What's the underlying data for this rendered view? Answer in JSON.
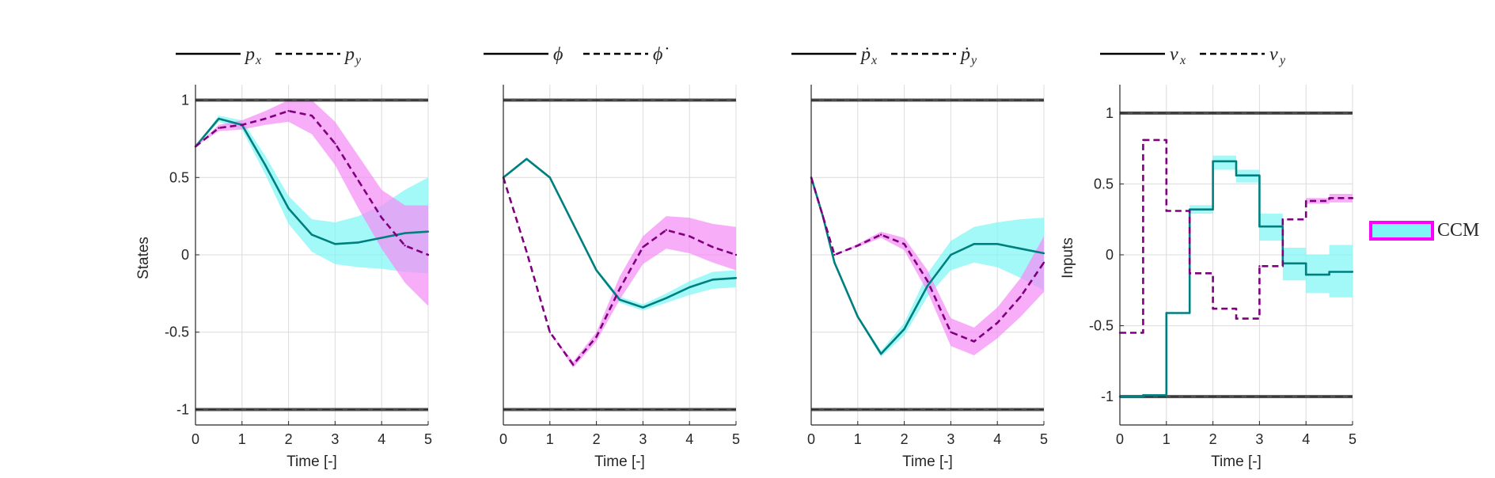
{
  "colors": {
    "band_primary": "#7ff5f5",
    "band_secondary": "#f58ef5",
    "line_primary": "#007f7f",
    "line_secondary": "#7f007f",
    "constraint": "#333333",
    "grid": "#dcdcdc",
    "axis": "#262626",
    "legend_patch_fill": "#7ff5f5",
    "legend_patch_edge": "#ff00ff"
  },
  "legend": {
    "label": "CCM"
  },
  "chart_data": [
    {
      "type": "line",
      "legend_labels": [
        "p",
        "x",
        "p",
        "y"
      ],
      "ylabel": "States",
      "xlabel": "Time [-]",
      "xlim": [
        0,
        5
      ],
      "ylim": [
        -1.1,
        1.1
      ],
      "xticks": [
        "0",
        "1",
        "2",
        "3",
        "4",
        "5"
      ],
      "yticks": [
        "1",
        "0.5",
        "0",
        "-0.5",
        "-1"
      ],
      "constraints": [
        1,
        -1
      ],
      "step": false,
      "x": [
        0,
        0.5,
        1,
        1.5,
        2,
        2.5,
        3,
        3.5,
        4,
        4.5,
        5
      ],
      "series": [
        {
          "name": "p_x",
          "values": [
            0.7,
            0.88,
            0.84,
            0.58,
            0.3,
            0.13,
            0.07,
            0.08,
            0.11,
            0.14,
            0.15
          ],
          "band_lower": [
            0.7,
            0.86,
            0.81,
            0.52,
            0.2,
            0.02,
            -0.06,
            -0.08,
            -0.09,
            -0.11,
            -0.12
          ],
          "band_upper": [
            0.7,
            0.9,
            0.87,
            0.64,
            0.38,
            0.23,
            0.21,
            0.25,
            0.32,
            0.42,
            0.5
          ]
        },
        {
          "name": "p_y",
          "values": [
            0.7,
            0.82,
            0.84,
            0.88,
            0.93,
            0.9,
            0.72,
            0.48,
            0.24,
            0.06,
            0
          ],
          "band_lower": [
            0.7,
            0.8,
            0.81,
            0.84,
            0.86,
            0.78,
            0.58,
            0.3,
            0.04,
            -0.18,
            -0.33
          ],
          "band_upper": [
            0.7,
            0.84,
            0.87,
            0.93,
            1.0,
            1.0,
            0.86,
            0.64,
            0.42,
            0.32,
            0.32
          ]
        }
      ]
    },
    {
      "type": "line",
      "legend_labels": [
        "ϕ",
        "",
        "ϕ̇",
        ""
      ],
      "ylabel": "",
      "xlabel": "Time [-]",
      "xlim": [
        0,
        5
      ],
      "ylim": [
        -1.1,
        1.1
      ],
      "xticks": [
        "0",
        "1",
        "2",
        "3",
        "4",
        "5"
      ],
      "yticks": [],
      "constraints": [
        1,
        -1
      ],
      "step": false,
      "x": [
        0,
        0.5,
        1,
        1.5,
        2,
        2.5,
        3,
        3.5,
        4,
        4.5,
        5
      ],
      "series": [
        {
          "name": "ϕ",
          "values": [
            0.5,
            0.62,
            0.5,
            0.2,
            -0.1,
            -0.29,
            -0.34,
            -0.28,
            -0.21,
            -0.16,
            -0.15
          ],
          "band_lower": [
            0.5,
            0.62,
            0.5,
            0.2,
            -0.11,
            -0.31,
            -0.36,
            -0.31,
            -0.26,
            -0.22,
            -0.21
          ],
          "band_upper": [
            0.5,
            0.62,
            0.5,
            0.2,
            -0.09,
            -0.27,
            -0.32,
            -0.25,
            -0.17,
            -0.11,
            -0.1
          ]
        },
        {
          "name": "ϕ̇",
          "values": [
            0.5,
            0.02,
            -0.5,
            -0.71,
            -0.53,
            -0.22,
            0.05,
            0.16,
            0.12,
            0.05,
            0.0
          ],
          "band_lower": [
            0.5,
            0.02,
            -0.5,
            -0.73,
            -0.56,
            -0.29,
            -0.06,
            0.04,
            0.01,
            -0.05,
            -0.1
          ],
          "band_upper": [
            0.5,
            0.02,
            -0.5,
            -0.69,
            -0.5,
            -0.14,
            0.12,
            0.25,
            0.24,
            0.2,
            0.18
          ]
        }
      ]
    },
    {
      "type": "line",
      "legend_labels": [
        "ṗ",
        "x",
        "ṗ",
        "y"
      ],
      "ylabel": "",
      "xlabel": "Time [-]",
      "xlim": [
        0,
        5
      ],
      "ylim": [
        -1.1,
        1.1
      ],
      "xticks": [
        "0",
        "1",
        "2",
        "3",
        "4",
        "5"
      ],
      "yticks": [],
      "constraints": [
        1,
        -1
      ],
      "step": false,
      "x": [
        0,
        0.25,
        0.5,
        1,
        1.5,
        2,
        2.5,
        3,
        3.5,
        4,
        4.5,
        5
      ],
      "series": [
        {
          "name": "ṗ_x",
          "values": [
            0.5,
            0.25,
            -0.05,
            -0.4,
            -0.64,
            -0.48,
            -0.2,
            0.0,
            0.07,
            0.07,
            0.04,
            0.01
          ],
          "band_lower": [
            0.5,
            0.25,
            -0.05,
            -0.41,
            -0.66,
            -0.52,
            -0.27,
            -0.1,
            -0.05,
            -0.08,
            -0.15,
            -0.23
          ],
          "band_upper": [
            0.5,
            0.25,
            -0.05,
            -0.39,
            -0.62,
            -0.44,
            -0.12,
            0.09,
            0.18,
            0.21,
            0.23,
            0.24
          ]
        },
        {
          "name": "ṗ_y",
          "values": [
            0.5,
            0.25,
            0.0,
            0.06,
            0.13,
            0.07,
            -0.17,
            -0.5,
            -0.56,
            -0.44,
            -0.27,
            -0.05
          ],
          "band_lower": [
            0.5,
            0.25,
            0.0,
            0.05,
            0.11,
            0.03,
            -0.24,
            -0.59,
            -0.65,
            -0.54,
            -0.4,
            -0.24
          ],
          "band_upper": [
            0.5,
            0.25,
            0.0,
            0.07,
            0.15,
            0.11,
            -0.1,
            -0.41,
            -0.47,
            -0.34,
            -0.15,
            0.12
          ]
        }
      ]
    },
    {
      "type": "line",
      "legend_labels": [
        "v",
        "x",
        "v",
        "y"
      ],
      "ylabel": "Inputs",
      "xlabel": "Time [-]",
      "xlim": [
        0,
        5
      ],
      "ylim": [
        -1.2,
        1.2
      ],
      "xticks": [
        "0",
        "1",
        "2",
        "3",
        "4",
        "5"
      ],
      "yticks": [
        "1",
        "0.5",
        "0",
        "-0.5",
        "-1"
      ],
      "constraints": [
        1,
        -1
      ],
      "step": true,
      "x": [
        0,
        0.5,
        1,
        1.5,
        2,
        2.5,
        3,
        3.5,
        4,
        4.5,
        5
      ],
      "series": [
        {
          "name": "v_x",
          "values": [
            -1.0,
            -0.99,
            -0.41,
            0.32,
            0.66,
            0.56,
            0.2,
            -0.06,
            -0.14,
            -0.12,
            -0.12
          ],
          "band_lower": [
            -1.0,
            -0.99,
            -0.41,
            0.29,
            0.6,
            0.51,
            0.1,
            -0.18,
            -0.27,
            -0.3,
            -0.3
          ],
          "band_upper": [
            -1.0,
            -0.99,
            -0.41,
            0.35,
            0.7,
            0.6,
            0.29,
            0.05,
            0.0,
            0.07,
            0.07
          ]
        },
        {
          "name": "v_y",
          "values": [
            -0.55,
            0.81,
            0.31,
            -0.13,
            -0.38,
            -0.45,
            -0.08,
            0.25,
            0.38,
            0.4,
            0.4
          ],
          "band_lower": [
            -0.55,
            0.81,
            0.31,
            -0.13,
            -0.38,
            -0.45,
            -0.08,
            0.25,
            0.36,
            0.37,
            0.37
          ],
          "band_upper": [
            -0.55,
            0.81,
            0.31,
            -0.13,
            -0.38,
            -0.45,
            -0.08,
            0.25,
            0.4,
            0.43,
            0.43
          ]
        }
      ]
    }
  ]
}
